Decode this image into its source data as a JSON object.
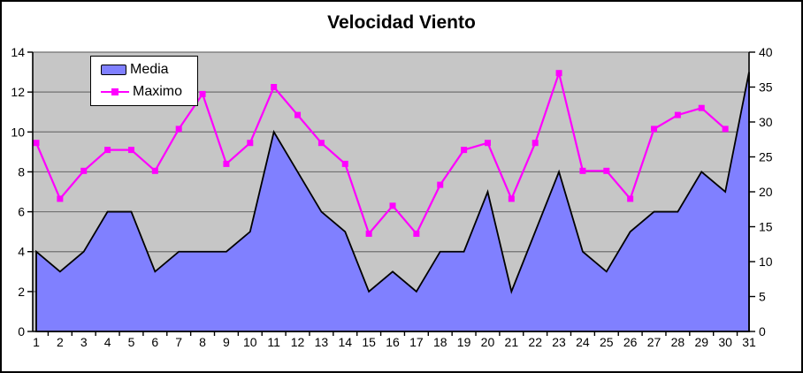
{
  "chart_data": {
    "type": "area+line",
    "title": "Velocidad Viento",
    "categories": [
      1,
      2,
      3,
      4,
      5,
      6,
      7,
      8,
      9,
      10,
      11,
      12,
      13,
      14,
      15,
      16,
      17,
      18,
      19,
      20,
      21,
      22,
      23,
      24,
      25,
      26,
      27,
      28,
      29,
      30,
      31
    ],
    "series": [
      {
        "name": "Media",
        "type": "area",
        "axis": "left",
        "color": "#8080FF",
        "border_color": "#000000",
        "values": [
          4,
          3,
          4,
          6,
          6,
          3,
          4,
          4,
          4,
          5,
          10,
          8,
          6,
          5,
          2,
          3,
          2,
          4,
          4,
          7,
          2,
          5,
          8,
          4,
          3,
          5,
          6,
          6,
          8,
          7,
          13
        ]
      },
      {
        "name": "Maximo",
        "type": "line",
        "axis": "right",
        "color": "#FF00FF",
        "marker": "square",
        "values": [
          27,
          19,
          23,
          26,
          26,
          23,
          29,
          34,
          24,
          27,
          35,
          31,
          27,
          24,
          14,
          18,
          14,
          21,
          26,
          27,
          19,
          27,
          37,
          23,
          23,
          19,
          29,
          31,
          32,
          29,
          null
        ]
      }
    ],
    "axes": {
      "left": {
        "min": 0,
        "max": 14,
        "step": 2,
        "ticks": [
          0,
          2,
          4,
          6,
          8,
          10,
          12,
          14
        ]
      },
      "right": {
        "min": 0,
        "max": 40,
        "step": 5,
        "ticks": [
          0,
          5,
          10,
          15,
          20,
          25,
          30,
          35,
          40
        ]
      },
      "x": {
        "ticks": [
          1,
          2,
          3,
          4,
          5,
          6,
          7,
          8,
          9,
          10,
          11,
          12,
          13,
          14,
          15,
          16,
          17,
          18,
          19,
          20,
          21,
          22,
          23,
          24,
          25,
          26,
          27,
          28,
          29,
          30,
          31
        ]
      }
    },
    "legend": {
      "position": "top-left",
      "entries": [
        "Media",
        "Maximo"
      ]
    },
    "colors": {
      "plot_bg": "#C6C6C6",
      "gridline": "#707070",
      "axis": "#000000",
      "text": "#000000",
      "background": "#FFFFFF",
      "frame": "#000000"
    },
    "grid": true
  }
}
